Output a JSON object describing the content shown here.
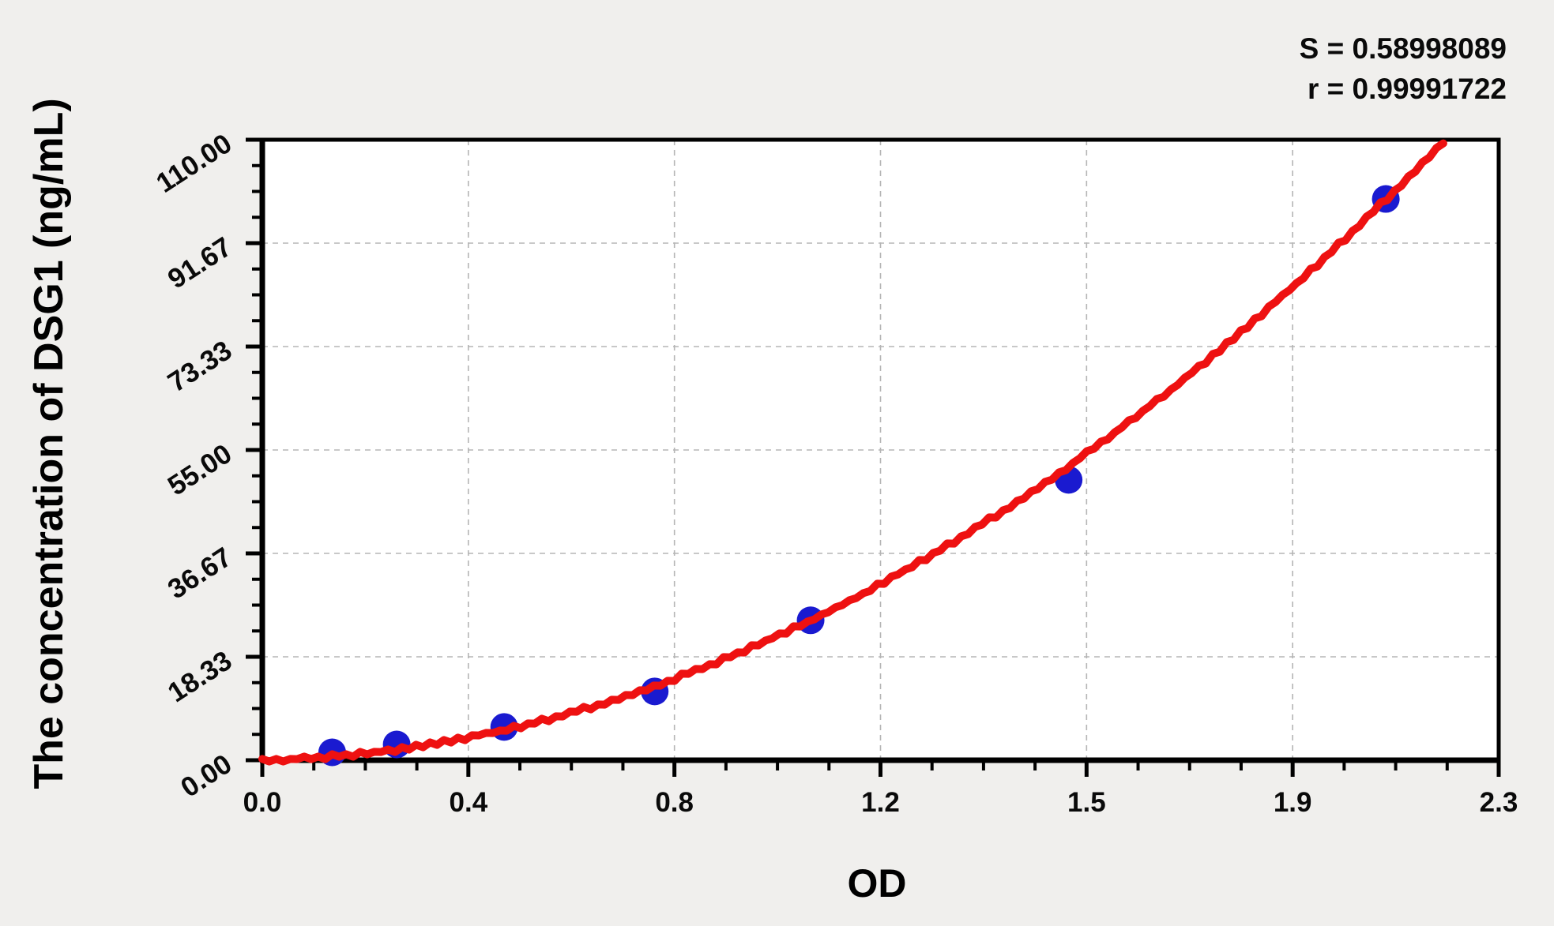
{
  "stats": {
    "line1": "S = 0.58998089",
    "line2": "r = 0.99991722"
  },
  "chart_data": {
    "type": "scatter",
    "title": "",
    "xlabel": "OD",
    "ylabel": "The concentration of DSG1 (ng/mL)",
    "xlim": [
      0,
      2.3
    ],
    "ylim": [
      0,
      110
    ],
    "x_tick_labels": [
      "0.0",
      "0.4",
      "0.8",
      "1.2",
      "1.5",
      "1.9",
      "2.3"
    ],
    "y_tick_labels": [
      "0.00",
      "18.33",
      "36.67",
      "55.00",
      "73.33",
      "91.67",
      "110.00"
    ],
    "major_divisions": 6,
    "minor_ticks_per_major": 3,
    "grid": "dashed-on-majors",
    "legend": "none",
    "points": [
      {
        "od": 0.13,
        "conc": 1.4
      },
      {
        "od": 0.25,
        "conc": 2.8
      },
      {
        "od": 0.45,
        "conc": 5.9
      },
      {
        "od": 0.73,
        "conc": 12.2
      },
      {
        "od": 1.02,
        "conc": 24.8
      },
      {
        "od": 1.5,
        "conc": 49.7
      },
      {
        "od": 2.09,
        "conc": 99.5
      }
    ],
    "fit_curve": {
      "type": "quadratic",
      "equation": "conc = 2.2*OD + 21.7*OD^2",
      "a_linear": 2.2,
      "b_quadratic": 21.7,
      "od_start": 0,
      "od_end": 2.201
    },
    "colors": {
      "curve": "#ee1111",
      "points": "#1a1ad0",
      "grid": "#b5b5b5",
      "axis": "#000000",
      "plot_background": "#ffffff",
      "page_background": "#f0efed"
    }
  }
}
